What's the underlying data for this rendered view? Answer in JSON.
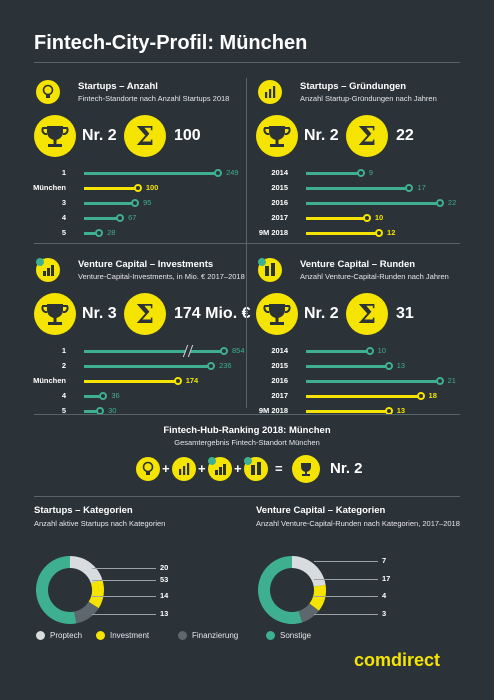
{
  "title": "Fintech-City-Profil: München",
  "colors": {
    "teal": "#3fb08f",
    "yellow": "#f5e400",
    "grey": "#5e676e",
    "light": "#d9dcde",
    "bg": "#2b3238"
  },
  "brand": "comdirect",
  "hub": {
    "title": "Fintech-Hub-Ranking 2018: München",
    "subtitle": "Gesamtergebnis Fintech-Standort München",
    "plus1": "+",
    "plus2": "+",
    "plus3": "+",
    "equals": "=",
    "result": "Nr. 2"
  },
  "chart_data": [
    {
      "type": "bar",
      "title": "Startups – Anzahl",
      "subtitle": "Fintech-Standorte nach Anzahl Startups 2018",
      "rank": "Nr. 2",
      "total": "100",
      "categories": [
        "1",
        "München",
        "3",
        "4",
        "5"
      ],
      "values": [
        249,
        100,
        95,
        67,
        28
      ],
      "highlight": [
        false,
        true,
        false,
        false,
        false
      ],
      "xlim": [
        0,
        260
      ]
    },
    {
      "type": "bar",
      "title": "Startups – Gründungen",
      "subtitle": "Anzahl Startup-Gründungen nach Jahren",
      "rank": "Nr. 2",
      "total": "22",
      "categories": [
        "2014",
        "2015",
        "2016",
        "2017",
        "9M 2018"
      ],
      "values": [
        9,
        17,
        22,
        10,
        12
      ],
      "highlight": [
        false,
        false,
        false,
        true,
        true
      ],
      "xlim": [
        0,
        23
      ]
    },
    {
      "type": "bar",
      "title": "Venture Capital – Investments",
      "subtitle": "Venture-Capital-Investments, in Mio. € 2017–2018",
      "rank": "Nr. 3",
      "total": "174 Mio. €",
      "categories": [
        "1",
        "2",
        "München",
        "4",
        "5"
      ],
      "values": [
        854,
        236,
        174,
        36,
        30
      ],
      "highlight": [
        false,
        false,
        true,
        false,
        false
      ],
      "xlim": [
        0,
        260
      ],
      "axis_break": true
    },
    {
      "type": "bar",
      "title": "Venture Capital – Runden",
      "subtitle": "Anzahl Venture-Capital-Runden nach Jahren",
      "rank": "Nr. 2",
      "total": "31",
      "categories": [
        "2014",
        "2015",
        "2016",
        "2017",
        "9M 2018"
      ],
      "values": [
        10,
        13,
        21,
        18,
        13
      ],
      "highlight": [
        false,
        false,
        false,
        true,
        true
      ],
      "xlim": [
        0,
        22
      ]
    },
    {
      "type": "pie",
      "title": "Startups – Kategorien",
      "subtitle": "Anzahl aktive Startups nach Kategorien",
      "categories": [
        "Proptech",
        "Investment",
        "Finanzierung",
        "Sonstige"
      ],
      "values": [
        20,
        14,
        13,
        53
      ],
      "labels": [
        "20",
        "53",
        "14",
        "13"
      ]
    },
    {
      "type": "pie",
      "title": "Venture Capital – Kategorien",
      "subtitle": "Anzahl Venture-Capital-Runden nach Kategorien, 2017–2018",
      "categories": [
        "Proptech",
        "Investment",
        "Finanzierung",
        "Sonstige"
      ],
      "values": [
        7,
        4,
        3,
        17
      ],
      "labels": [
        "7",
        "17",
        "4",
        "3"
      ]
    }
  ],
  "legend": [
    "Proptech",
    "Investment",
    "Finanzierung",
    "Sonstige"
  ]
}
